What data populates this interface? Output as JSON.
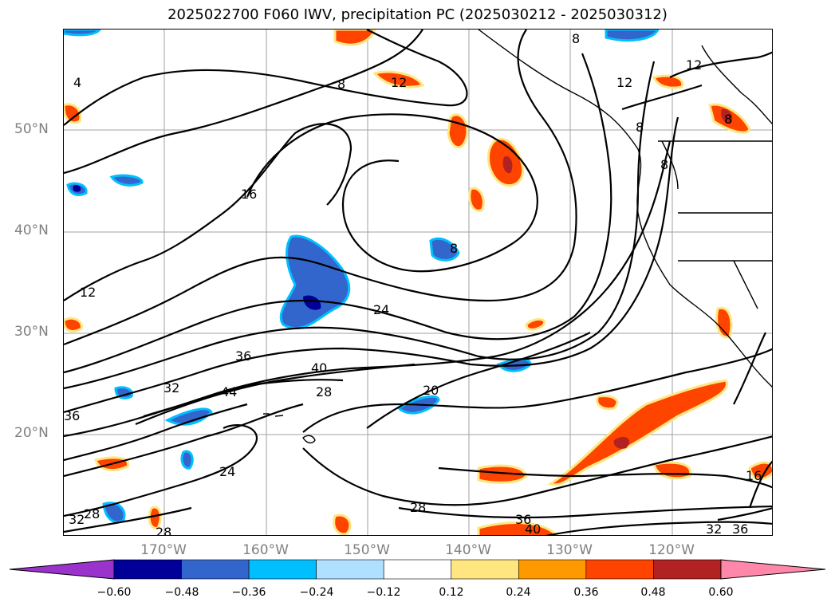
{
  "title": "2025022700 F060 IWV, precipitation PC (2025030212 - 2025030312)",
  "lat_labels": [
    "50°N",
    "40°N",
    "30°N",
    "20°N"
  ],
  "lon_labels": [
    "170°W",
    "160°W",
    "150°W",
    "140°W",
    "130°W",
    "120°W"
  ],
  "contour_labels": [
    "4",
    "8",
    "8",
    "8",
    "12",
    "12",
    "12",
    "12",
    "16",
    "16",
    "20",
    "24",
    "24",
    "28",
    "28",
    "28",
    "28",
    "32",
    "32",
    "32",
    "36",
    "36",
    "36",
    "36",
    "40",
    "40",
    "44",
    "8",
    "8",
    "8"
  ],
  "colorbar": {
    "ticks": [
      "−0.60",
      "−0.48",
      "−0.36",
      "−0.24",
      "−0.12",
      "0.12",
      "0.24",
      "0.36",
      "0.48",
      "0.60"
    ],
    "colors": [
      "#9933cc",
      "#000099",
      "#3366cc",
      "#00bfff",
      "#b0e0ff",
      "#ffffff",
      "#ffe680",
      "#ff9900",
      "#ff4400",
      "#b22222",
      "#ff88aa"
    ]
  },
  "colors": {
    "contour": "#000000",
    "grid": "#a0a0a0",
    "axis_text": "#808080",
    "precip_positive": [
      "#ffe680",
      "#ff9900",
      "#ff4400",
      "#b22222"
    ],
    "precip_negative": [
      "#b0e0ff",
      "#00bfff",
      "#3366cc",
      "#000099"
    ]
  }
}
